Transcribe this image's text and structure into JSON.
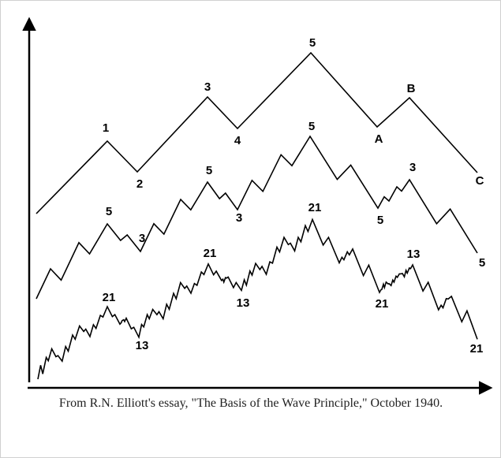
{
  "waves": [
    {
      "labels": [
        "1",
        "2",
        "3",
        "4",
        "5",
        "A",
        "B",
        "C"
      ]
    },
    {
      "labels": [
        "5",
        "3",
        "5",
        "3",
        "5",
        "5",
        "3",
        "5"
      ]
    },
    {
      "labels": [
        "21",
        "13",
        "21",
        "13",
        "21",
        "21",
        "13",
        "21"
      ]
    }
  ],
  "caption": "From R.N. Elliott's essay, \"The Basis of the Wave Principle,\" October 1940."
}
